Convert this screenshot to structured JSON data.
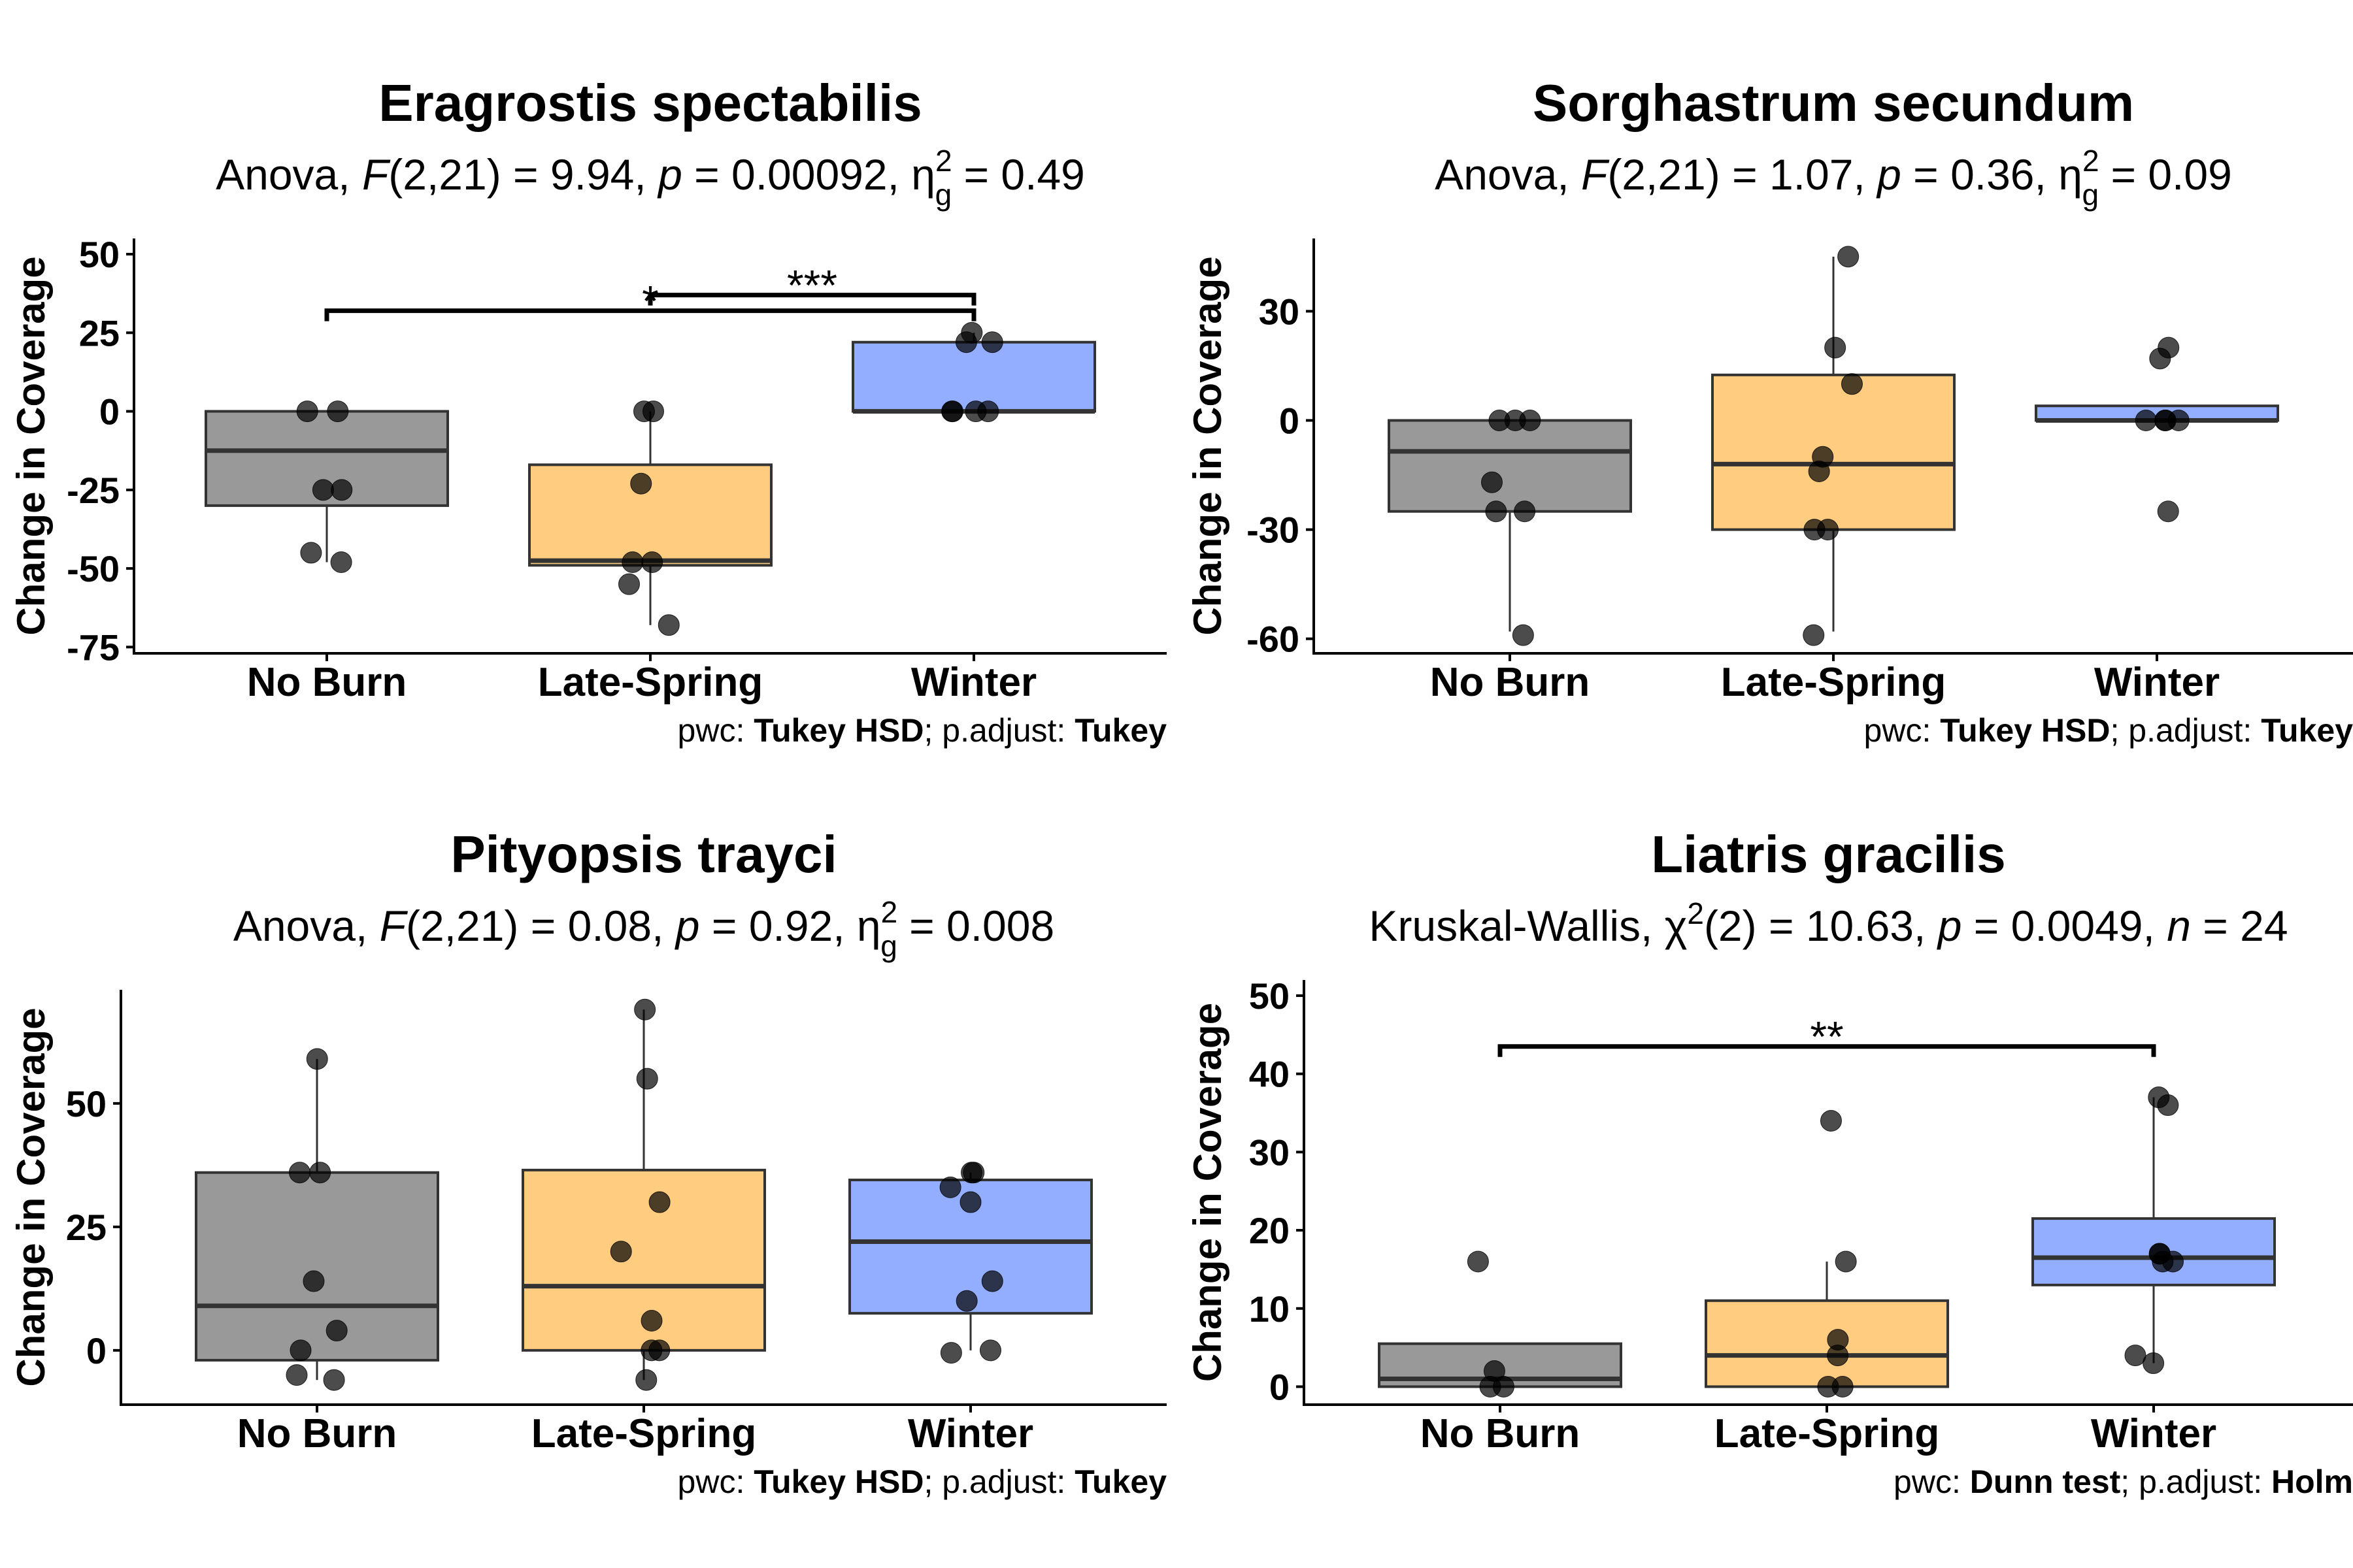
{
  "chart_data": [
    {
      "type": "box",
      "title": "Eragrostis spectabilis",
      "subtitle": {
        "test": "Anova",
        "stat_name": "F",
        "stat_args": "(2,21)",
        "stat_value": "9.94",
        "p": "0.00092",
        "effect_name": "η",
        "effect_sub": "g",
        "effect_sup": "2",
        "effect_value": "0.49"
      },
      "ylabel": "Change in Coverage",
      "ylim": [
        -77,
        55
      ],
      "yticks": [
        50,
        25,
        0,
        -25,
        -50,
        -75
      ],
      "ytick_labels": [
        "50",
        "25",
        "0",
        "-25",
        "-50",
        "-75"
      ],
      "categories": [
        "No Burn",
        "Late-Spring",
        "Winter"
      ],
      "colors": [
        "#999999",
        "#FFCC80",
        "#94AEFF"
      ],
      "boxes": [
        {
          "q1": -30,
          "median": -12.5,
          "q3": 0,
          "whisker_low": -48,
          "whisker_high": 0
        },
        {
          "q1": -49,
          "median": -47.5,
          "q3": -17,
          "whisker_low": -68,
          "whisker_high": 0
        },
        {
          "q1": 0,
          "median": 0,
          "q3": 22,
          "whisker_low": 0,
          "whisker_high": 25
        }
      ],
      "points": [
        [
          0,
          0,
          -25,
          -25,
          -45,
          -48
        ],
        [
          0,
          0,
          -23,
          -48,
          -48,
          -55,
          -68
        ],
        [
          25,
          22,
          22,
          0,
          0,
          0,
          0
        ]
      ],
      "comparisons": [
        {
          "from": "No Burn",
          "to": "Winter",
          "label": "*",
          "y": 32
        },
        {
          "from": "Late-Spring",
          "to": "Winter",
          "label": "***",
          "y": 37
        }
      ],
      "caption": {
        "pwc_label": "pwc: ",
        "pwc_value": "Tukey HSD",
        "adj_label": "; p.adjust: ",
        "adj_value": "Tukey"
      }
    },
    {
      "type": "box",
      "title": "Sorghastrum secundum",
      "subtitle": {
        "test": "Anova",
        "stat_name": "F",
        "stat_args": "(2,21)",
        "stat_value": "1.07",
        "p": "0.36",
        "effect_name": "η",
        "effect_sub": "g",
        "effect_sup": "2",
        "effect_value": "0.09"
      },
      "ylabel": "Change in Coverage",
      "ylim": [
        -64,
        50
      ],
      "yticks": [
        30,
        0,
        -30,
        -60
      ],
      "ytick_labels": [
        "30",
        "0",
        "-30",
        "-60"
      ],
      "categories": [
        "No Burn",
        "Late-Spring",
        "Winter"
      ],
      "colors": [
        "#999999",
        "#FFCC80",
        "#94AEFF"
      ],
      "boxes": [
        {
          "q1": -25,
          "median": -8.5,
          "q3": 0,
          "whisker_low": -58,
          "whisker_high": 0
        },
        {
          "q1": -30,
          "median": -12,
          "q3": 12.5,
          "whisker_low": -58,
          "whisker_high": 45
        },
        {
          "q1": 0,
          "median": 0,
          "q3": 4,
          "whisker_low": 0,
          "whisker_high": 4
        }
      ],
      "points": [
        [
          0,
          0,
          0,
          -17,
          -25,
          -25,
          -59
        ],
        [
          45,
          20,
          10,
          -10,
          -14,
          -30,
          -30,
          -59
        ],
        [
          20,
          17,
          0,
          0,
          0,
          0,
          -25
        ]
      ],
      "comparisons": [],
      "caption": {
        "pwc_label": "pwc: ",
        "pwc_value": "Tukey HSD",
        "adj_label": "; p.adjust: ",
        "adj_value": "Tukey"
      }
    },
    {
      "type": "box",
      "title": "Pityopsis trayci",
      "subtitle": {
        "test": "Anova",
        "stat_name": "F",
        "stat_args": "(2,21)",
        "stat_value": "0.08",
        "p": "0.92",
        "effect_name": "η",
        "effect_sub": "g",
        "effect_sup": "2",
        "effect_value": "0.008"
      },
      "ylabel": "Change in Coverage",
      "ylim": [
        -11,
        73
      ],
      "yticks": [
        50,
        25,
        0
      ],
      "ytick_labels": [
        "50",
        "25",
        "0"
      ],
      "categories": [
        "No Burn",
        "Late-Spring",
        "Winter"
      ],
      "colors": [
        "#999999",
        "#FFCC80",
        "#94AEFF"
      ],
      "boxes": [
        {
          "q1": -2,
          "median": 9,
          "q3": 36,
          "whisker_low": -6,
          "whisker_high": 59
        },
        {
          "q1": 0,
          "median": 13,
          "q3": 36.5,
          "whisker_low": -6,
          "whisker_high": 69
        },
        {
          "q1": 7.5,
          "median": 22,
          "q3": 34.5,
          "whisker_low": 0,
          "whisker_high": 36
        }
      ],
      "points": [
        [
          59,
          36,
          36,
          14,
          4,
          0,
          -5,
          -6
        ],
        [
          69,
          55,
          30,
          20,
          6,
          0,
          0,
          -6
        ],
        [
          36,
          36,
          33,
          30,
          14,
          10,
          0,
          -0.5
        ]
      ],
      "comparisons": [],
      "caption": {
        "pwc_label": "pwc: ",
        "pwc_value": "Tukey HSD",
        "adj_label": "; p.adjust: ",
        "adj_value": "Tukey"
      }
    },
    {
      "type": "box",
      "title": "Liatris gracilis",
      "subtitle": {
        "test": "Kruskal-Wallis",
        "stat_name": "χ",
        "stat_sup": "2",
        "stat_args": "(2)",
        "stat_value": "10.63",
        "p": "0.0049",
        "n_name": "n",
        "n_value": "24"
      },
      "ylabel": "Change in Coverage",
      "ylim": [
        -2.3,
        52
      ],
      "yticks": [
        50,
        40,
        30,
        20,
        10,
        0
      ],
      "ytick_labels": [
        "50",
        "40",
        "30",
        "20",
        "10",
        "0"
      ],
      "categories": [
        "No Burn",
        "Late-Spring",
        "Winter"
      ],
      "colors": [
        "#999999",
        "#FFCC80",
        "#94AEFF"
      ],
      "boxes": [
        {
          "q1": 0,
          "median": 1,
          "q3": 5.5,
          "whisker_low": 0,
          "whisker_high": 5.5
        },
        {
          "q1": 0,
          "median": 4,
          "q3": 11,
          "whisker_low": 0,
          "whisker_high": 16
        },
        {
          "q1": 13,
          "median": 16.5,
          "q3": 21.5,
          "whisker_low": 3,
          "whisker_high": 37
        }
      ],
      "points": [
        [
          16,
          2,
          0,
          0
        ],
        [
          34,
          16,
          6,
          4,
          0,
          0
        ],
        [
          37,
          36,
          17,
          17,
          16,
          16,
          4,
          3
        ]
      ],
      "comparisons": [
        {
          "from": "No Burn",
          "to": "Winter",
          "label": "**",
          "y": 43.5
        }
      ],
      "caption": {
        "pwc_label": "pwc: ",
        "pwc_value": "Dunn test",
        "adj_label": "; p.adjust: ",
        "adj_value": "Holm"
      }
    }
  ]
}
